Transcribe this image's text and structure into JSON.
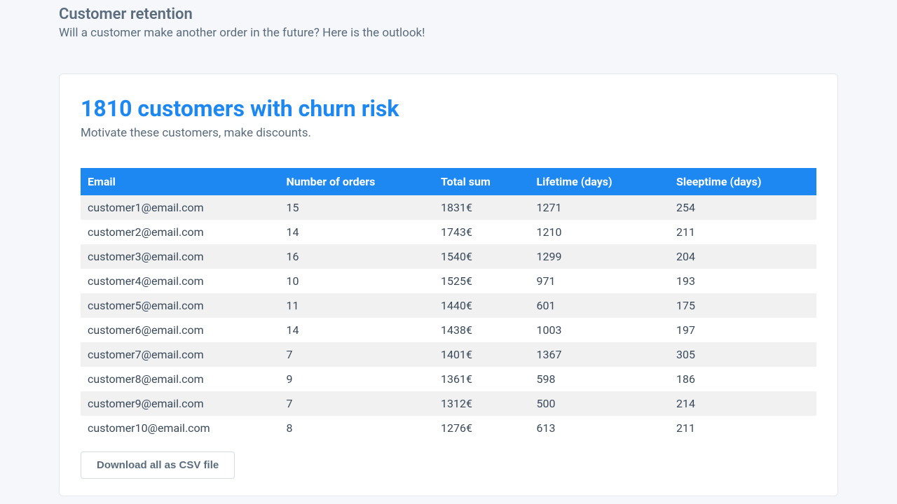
{
  "header": {
    "title": "Customer retention",
    "subtitle": "Will a customer make another order in the future? Here is the outlook!"
  },
  "card": {
    "title": "1810 customers with churn risk",
    "subtitle": "Motivate these customers, make discounts."
  },
  "table": {
    "columns": [
      "Email",
      "Number of orders",
      "Total sum",
      "Lifetime (days)",
      "Sleeptime (days)"
    ],
    "rows": [
      {
        "email": "customer1@email.com",
        "orders": "15",
        "total": "1831€",
        "lifetime": "1271",
        "sleeptime": "254"
      },
      {
        "email": "customer2@email.com",
        "orders": "14",
        "total": "1743€",
        "lifetime": "1210",
        "sleeptime": "211"
      },
      {
        "email": "customer3@email.com",
        "orders": "16",
        "total": "1540€",
        "lifetime": "1299",
        "sleeptime": "204"
      },
      {
        "email": "customer4@email.com",
        "orders": "10",
        "total": "1525€",
        "lifetime": "971",
        "sleeptime": "193"
      },
      {
        "email": "customer5@email.com",
        "orders": "11",
        "total": "1440€",
        "lifetime": "601",
        "sleeptime": "175"
      },
      {
        "email": "customer6@email.com",
        "orders": "14",
        "total": "1438€",
        "lifetime": "1003",
        "sleeptime": "197"
      },
      {
        "email": "customer7@email.com",
        "orders": "7",
        "total": "1401€",
        "lifetime": "1367",
        "sleeptime": "305"
      },
      {
        "email": "customer8@email.com",
        "orders": "9",
        "total": "1361€",
        "lifetime": "598",
        "sleeptime": "186"
      },
      {
        "email": "customer9@email.com",
        "orders": "7",
        "total": "1312€",
        "lifetime": "500",
        "sleeptime": "214"
      },
      {
        "email": "customer10@email.com",
        "orders": "8",
        "total": "1276€",
        "lifetime": "613",
        "sleeptime": "211"
      }
    ]
  },
  "actions": {
    "download_label": "Download all as CSV file"
  },
  "style": {
    "accent_color": "#1e88f2",
    "page_bg": "#f5f7fa",
    "card_bg": "#ffffff",
    "row_stripe": "#f1f1f1",
    "text_muted": "#5a6c7d",
    "text_body": "#3a4a5b"
  }
}
